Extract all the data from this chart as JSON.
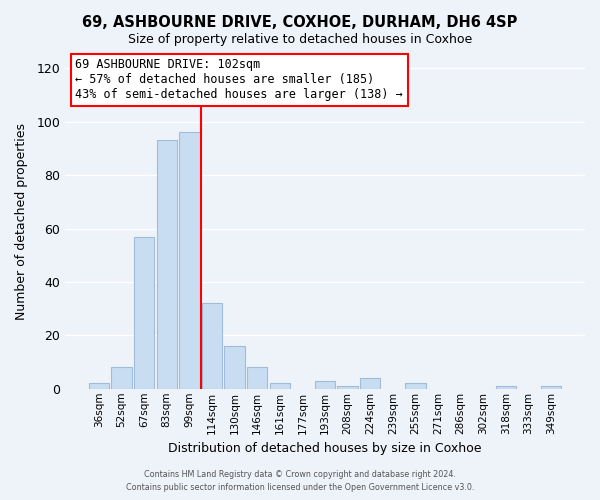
{
  "title_line1": "69, ASHBOURNE DRIVE, COXHOE, DURHAM, DH6 4SP",
  "title_line2": "Size of property relative to detached houses in Coxhoe",
  "xlabel": "Distribution of detached houses by size in Coxhoe",
  "ylabel": "Number of detached properties",
  "bar_labels": [
    "36sqm",
    "52sqm",
    "67sqm",
    "83sqm",
    "99sqm",
    "114sqm",
    "130sqm",
    "146sqm",
    "161sqm",
    "177sqm",
    "193sqm",
    "208sqm",
    "224sqm",
    "239sqm",
    "255sqm",
    "271sqm",
    "286sqm",
    "302sqm",
    "318sqm",
    "333sqm",
    "349sqm"
  ],
  "bar_values": [
    2,
    8,
    57,
    93,
    96,
    32,
    16,
    8,
    2,
    0,
    3,
    1,
    4,
    0,
    2,
    0,
    0,
    0,
    1,
    0,
    1
  ],
  "bar_color": "#c8ddf2",
  "bar_edge_color": "#a0bcd8",
  "vline_color": "red",
  "vline_bar_index": 4,
  "ylim": [
    0,
    125
  ],
  "yticks": [
    0,
    20,
    40,
    60,
    80,
    100,
    120
  ],
  "annotation_title": "69 ASHBOURNE DRIVE: 102sqm",
  "annotation_line1": "← 57% of detached houses are smaller (185)",
  "annotation_line2": "43% of semi-detached houses are larger (138) →",
  "annotation_box_color": "white",
  "annotation_box_edge_color": "red",
  "footer_line1": "Contains HM Land Registry data © Crown copyright and database right 2024.",
  "footer_line2": "Contains public sector information licensed under the Open Government Licence v3.0.",
  "background_color": "#eef2f9",
  "grid_color": "white"
}
